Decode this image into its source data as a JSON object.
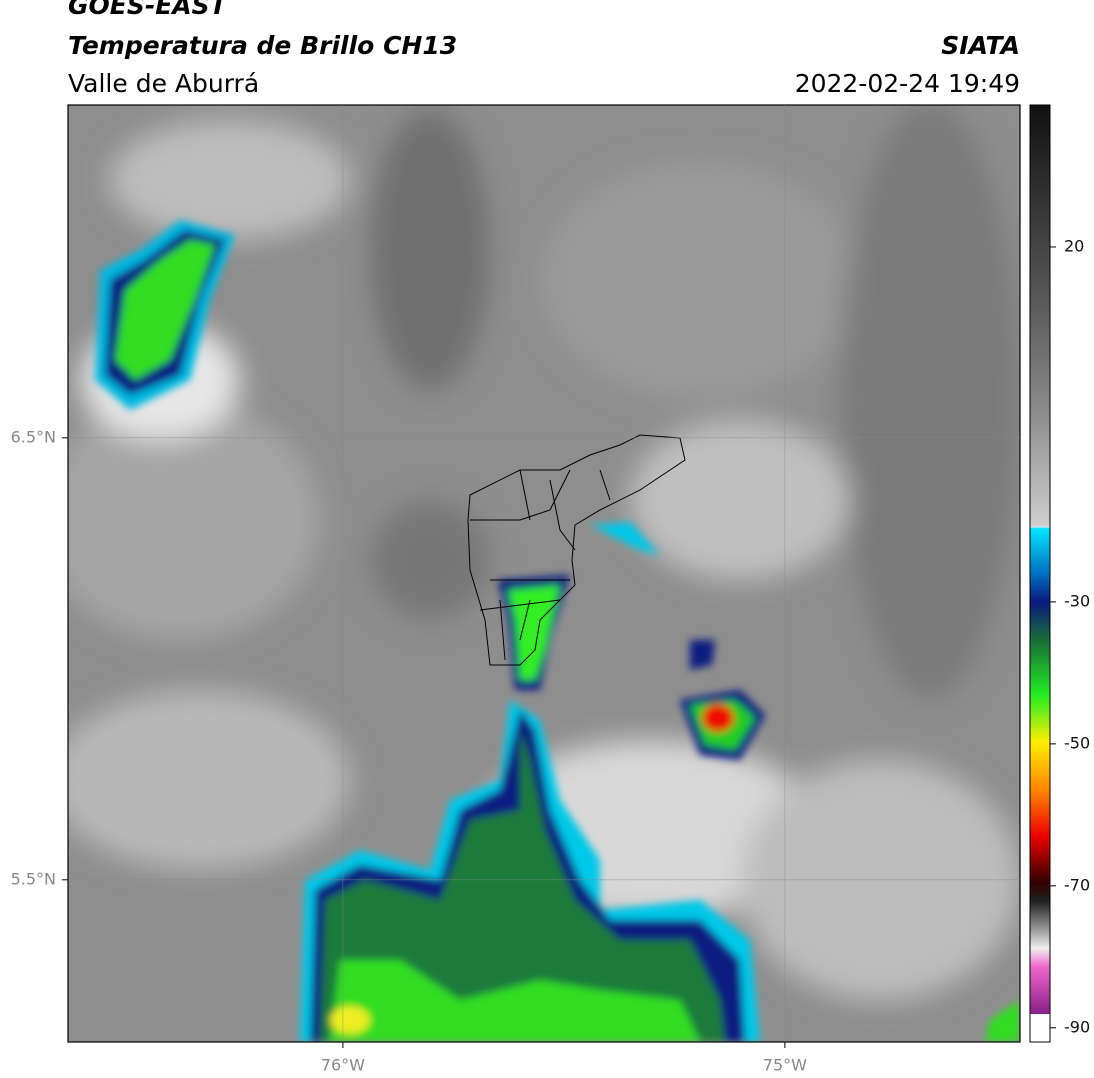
{
  "header": {
    "title": "GOES-EAST",
    "subtitle": "Temperatura de Brillo CH13",
    "region": "Valle de Aburrá",
    "source": "SIATA",
    "datetime": "2022-02-24 19:49"
  },
  "map": {
    "lon_lim": [
      -76.622,
      -74.468
    ],
    "lat_lim": [
      5.133,
      7.253
    ],
    "lon_ticks": [
      {
        "value": -76,
        "label": "76°W"
      },
      {
        "value": -75,
        "label": "75°W"
      }
    ],
    "lat_ticks": [
      {
        "value": 6.5,
        "label": "6.5°N"
      },
      {
        "value": 5.5,
        "label": "5.5°N"
      }
    ]
  },
  "colorbar": {
    "lim": [
      -92,
      40
    ],
    "ticks": [
      20,
      -30,
      -50,
      -70,
      -90
    ]
  }
}
